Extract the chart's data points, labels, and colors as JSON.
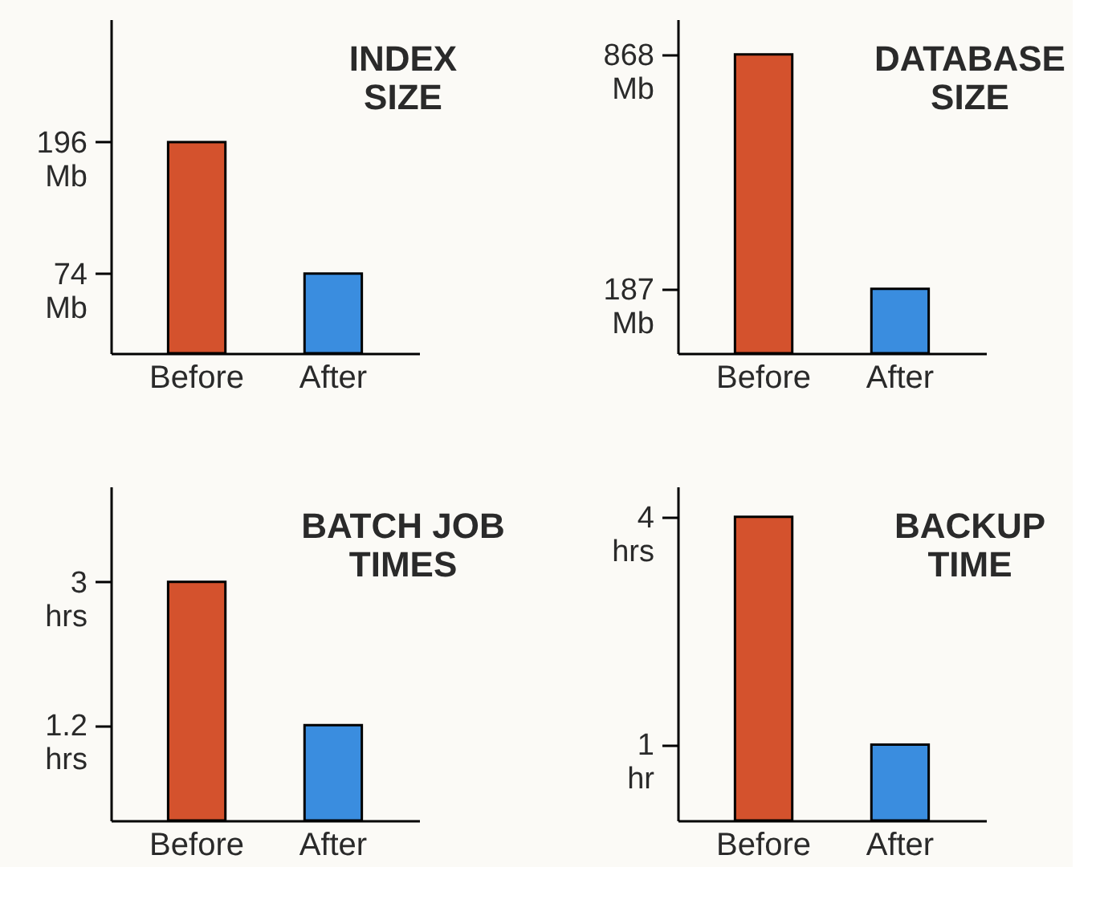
{
  "chart_data": [
    {
      "type": "bar",
      "title": "INDEX\nSIZE",
      "categories": [
        "Before",
        "After"
      ],
      "values": [
        196,
        74
      ],
      "colors": [
        "#d4522d",
        "#3a8ddf"
      ],
      "ylim": [
        0,
        310
      ],
      "yticks": [
        {
          "value": 196,
          "label": "196\nMb"
        },
        {
          "value": 74,
          "label": "74\nMb"
        }
      ]
    },
    {
      "type": "bar",
      "title": "DATABASE\nSIZE",
      "categories": [
        "Before",
        "After"
      ],
      "values": [
        868,
        187
      ],
      "colors": [
        "#d4522d",
        "#3a8ddf"
      ],
      "ylim": [
        0,
        970
      ],
      "yticks": [
        {
          "value": 868,
          "label": "868\nMb"
        },
        {
          "value": 187,
          "label": "187\nMb"
        }
      ]
    },
    {
      "type": "bar",
      "title": "BATCH JOB\nTIMES",
      "categories": [
        "Before",
        "After"
      ],
      "values": [
        3,
        1.2
      ],
      "colors": [
        "#d4522d",
        "#3a8ddf"
      ],
      "ylim": [
        0,
        4.2
      ],
      "yticks": [
        {
          "value": 3,
          "label": "3\nhrs"
        },
        {
          "value": 1.2,
          "label": "1.2\nhrs"
        }
      ]
    },
    {
      "type": "bar",
      "title": "BACKUP\nTIME",
      "categories": [
        "Before",
        "After"
      ],
      "values": [
        4,
        1
      ],
      "colors": [
        "#d4522d",
        "#3a8ddf"
      ],
      "ylim": [
        0,
        4.4
      ],
      "yticks": [
        {
          "value": 4,
          "label": "4\nhrs"
        },
        {
          "value": 1,
          "label": "1\nhr"
        }
      ]
    }
  ]
}
